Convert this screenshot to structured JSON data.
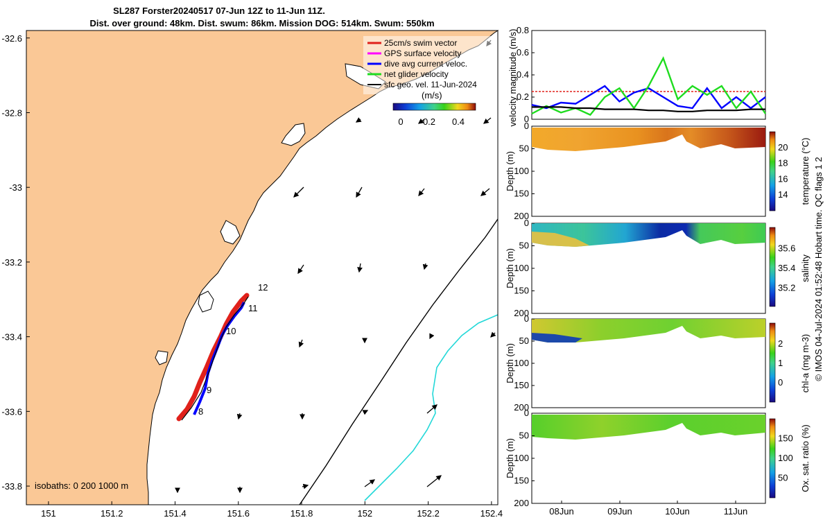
{
  "title": {
    "line1": "SL287 Forster20240517 07-Jun 12Z to 11-Jun 11Z.",
    "line2": "Dist. over ground: 48km. Dist. swum: 86km. Mission DOG: 514km. Swum: 550km"
  },
  "map": {
    "lat_ticks": [
      "-32.6",
      "-32.8",
      "-33",
      "-33.2",
      "-33.4",
      "-33.6",
      "-33.8"
    ],
    "lon_ticks": [
      "151",
      "151.2",
      "151.4",
      "151.6",
      "151.8",
      "152",
      "152.2",
      "152.4"
    ],
    "lat_range": [
      -33.85,
      -32.58
    ],
    "lon_range": [
      150.93,
      152.42
    ],
    "track_labels": [
      "12",
      "11",
      "10",
      "9",
      "8"
    ],
    "isobaths_label": "isobaths: 0   200  1000 m",
    "land_color": "#fac896",
    "legend": [
      {
        "label": "25cm/s swim vector",
        "color": "#e0211b"
      },
      {
        "label": "GPS surface velocity",
        "color": "#ff00ff"
      },
      {
        "label": "dive avg current veloc.",
        "color": "#0000ff"
      },
      {
        "label": "net glider velocity",
        "color": "#1fdc1f"
      },
      {
        "label": "sfc geo. vel. 11-Jun-2024",
        "color": "#000000"
      }
    ],
    "colorbar_unit": "(m/s)",
    "colorbar_ticks": [
      "0",
      "0.2",
      "0.4"
    ]
  },
  "velocity_panel": {
    "ylabel": "velocity magnitude (m/s)",
    "y_ticks": [
      "0",
      "0.2",
      "0.4",
      "0.6",
      "0.8"
    ],
    "ylim": [
      0,
      0.8
    ],
    "colors": {
      "swim": "#e0211b",
      "dive_avg": "#0000ff",
      "net": "#1fdc1f",
      "geo": "#000000"
    }
  },
  "depth_ticks": [
    "0",
    "50",
    "100",
    "150",
    "200"
  ],
  "depth_label": "Depth (m)",
  "time_ticks": [
    "08Jun",
    "09Jun",
    "10Jun",
    "11Jun"
  ],
  "sections": [
    {
      "colorbar_label": "temperature (°C)",
      "colorbar_ticks": [
        "20",
        "18",
        "16",
        "14"
      ]
    },
    {
      "colorbar_label": "salinity",
      "colorbar_ticks": [
        "35.6",
        "35.4",
        "35.2"
      ]
    },
    {
      "colorbar_label": "chl-a (mg m-3)",
      "colorbar_ticks": [
        "2",
        "1",
        "0"
      ]
    },
    {
      "colorbar_label": "Ox. sat. ratio (%)",
      "colorbar_ticks": [
        "150",
        "100",
        "50"
      ]
    }
  ],
  "footer": "© IMOS 04-Jul-2024 01:52:48 Hobart time. QC flags 1  2",
  "chart_data": [
    {
      "type": "line",
      "title": "",
      "xlabel": "",
      "ylabel": "velocity magnitude (m/s)",
      "ylim": [
        0,
        0.8
      ],
      "x": [
        "07Jun12",
        "07Jun18",
        "08Jun00",
        "08Jun06",
        "08Jun12",
        "08Jun18",
        "09Jun00",
        "09Jun06",
        "09Jun12",
        "09Jun18",
        "10Jun00",
        "10Jun06",
        "10Jun12",
        "10Jun18",
        "11Jun00",
        "11Jun06",
        "11Jun11"
      ],
      "series": [
        {
          "name": "25cm/s swim vector",
          "values": [
            0.25,
            0.25,
            0.25,
            0.25,
            0.25,
            0.25,
            0.25,
            0.25,
            0.25,
            0.25,
            0.25,
            0.25,
            0.25,
            0.25,
            0.25,
            0.25,
            0.25
          ]
        },
        {
          "name": "dive avg current veloc.",
          "values": [
            0.13,
            0.1,
            0.15,
            0.14,
            0.22,
            0.3,
            0.16,
            0.24,
            0.28,
            0.2,
            0.12,
            0.1,
            0.28,
            0.1,
            0.2,
            0.1,
            0.2
          ]
        },
        {
          "name": "net glider velocity",
          "values": [
            0.05,
            0.12,
            0.06,
            0.1,
            0.04,
            0.2,
            0.28,
            0.1,
            0.3,
            0.55,
            0.18,
            0.3,
            0.22,
            0.3,
            0.1,
            0.25,
            0.05
          ]
        },
        {
          "name": "sfc geo. vel. 11-Jun-2024",
          "values": [
            0.11,
            0.11,
            0.11,
            0.1,
            0.1,
            0.09,
            0.09,
            0.09,
            0.08,
            0.08,
            0.07,
            0.07,
            0.08,
            0.08,
            0.08,
            0.09,
            0.09
          ]
        }
      ]
    },
    {
      "type": "heatmap",
      "ylabel": "Depth (m)",
      "ylim": [
        200,
        0
      ],
      "x": [
        "07Jun12",
        "08Jun00",
        "08Jun12",
        "09Jun00",
        "09Jun12",
        "10Jun00",
        "10Jun12",
        "11Jun00",
        "11Jun11"
      ],
      "series": [
        {
          "name": "temperature (°C)",
          "values": [
            19.8,
            20.0,
            20.2,
            20.4,
            20.8,
            20.5,
            20.3,
            20.9,
            21.4
          ]
        },
        {
          "name": "salinity",
          "values": [
            35.45,
            35.4,
            35.3,
            35.25,
            35.1,
            35.05,
            35.35,
            35.4,
            35.35
          ]
        },
        {
          "name": "chl-a (mg m-3)",
          "values": [
            1.2,
            1.1,
            1.0,
            1.3,
            1.2,
            1.1,
            0.9,
            1.1,
            1.0
          ]
        },
        {
          "name": "Ox. sat. ratio (%)",
          "values": [
            115,
            120,
            115,
            112,
            112,
            110,
            115,
            118,
            113
          ]
        }
      ]
    }
  ]
}
